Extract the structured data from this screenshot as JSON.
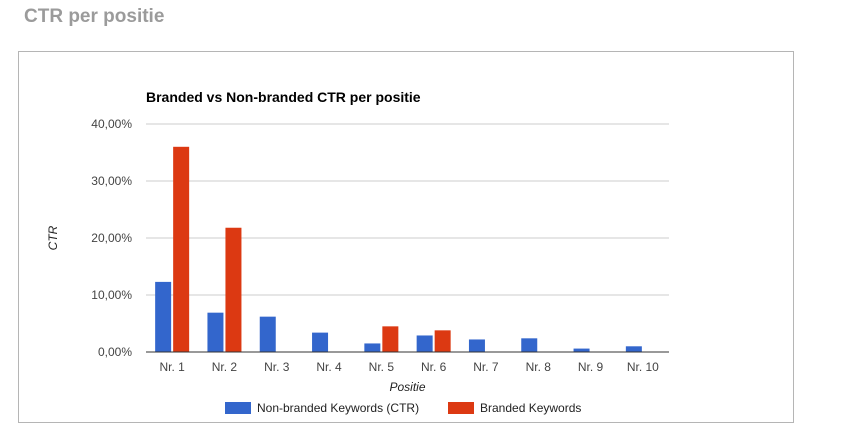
{
  "page": {
    "heading": "CTR per positie"
  },
  "chart_data": {
    "type": "bar",
    "title": "Branded vs Non-branded CTR per positie",
    "xlabel": "Positie",
    "ylabel": "CTR",
    "categories": [
      "Nr. 1",
      "Nr. 2",
      "Nr. 3",
      "Nr. 4",
      "Nr. 5",
      "Nr. 6",
      "Nr. 7",
      "Nr. 8",
      "Nr. 9",
      "Nr. 10"
    ],
    "series": [
      {
        "name": "Non-branded Keywords (CTR)",
        "color": "#3366cc",
        "values": [
          12.3,
          6.9,
          6.2,
          3.4,
          1.5,
          2.9,
          2.2,
          2.4,
          0.6,
          1.0
        ]
      },
      {
        "name": "Branded Keywords",
        "color": "#dc3912",
        "values": [
          36.0,
          21.8,
          0,
          0,
          4.5,
          3.8,
          0,
          0,
          0,
          0
        ]
      }
    ],
    "ylim": [
      0,
      40
    ],
    "yticks": [
      {
        "value": 0,
        "label": "0,00%"
      },
      {
        "value": 10,
        "label": "10,00%"
      },
      {
        "value": 20,
        "label": "20,00%"
      },
      {
        "value": 30,
        "label": "30,00%"
      },
      {
        "value": 40,
        "label": "40,00%"
      }
    ],
    "grid": true,
    "legend": "bottom"
  }
}
